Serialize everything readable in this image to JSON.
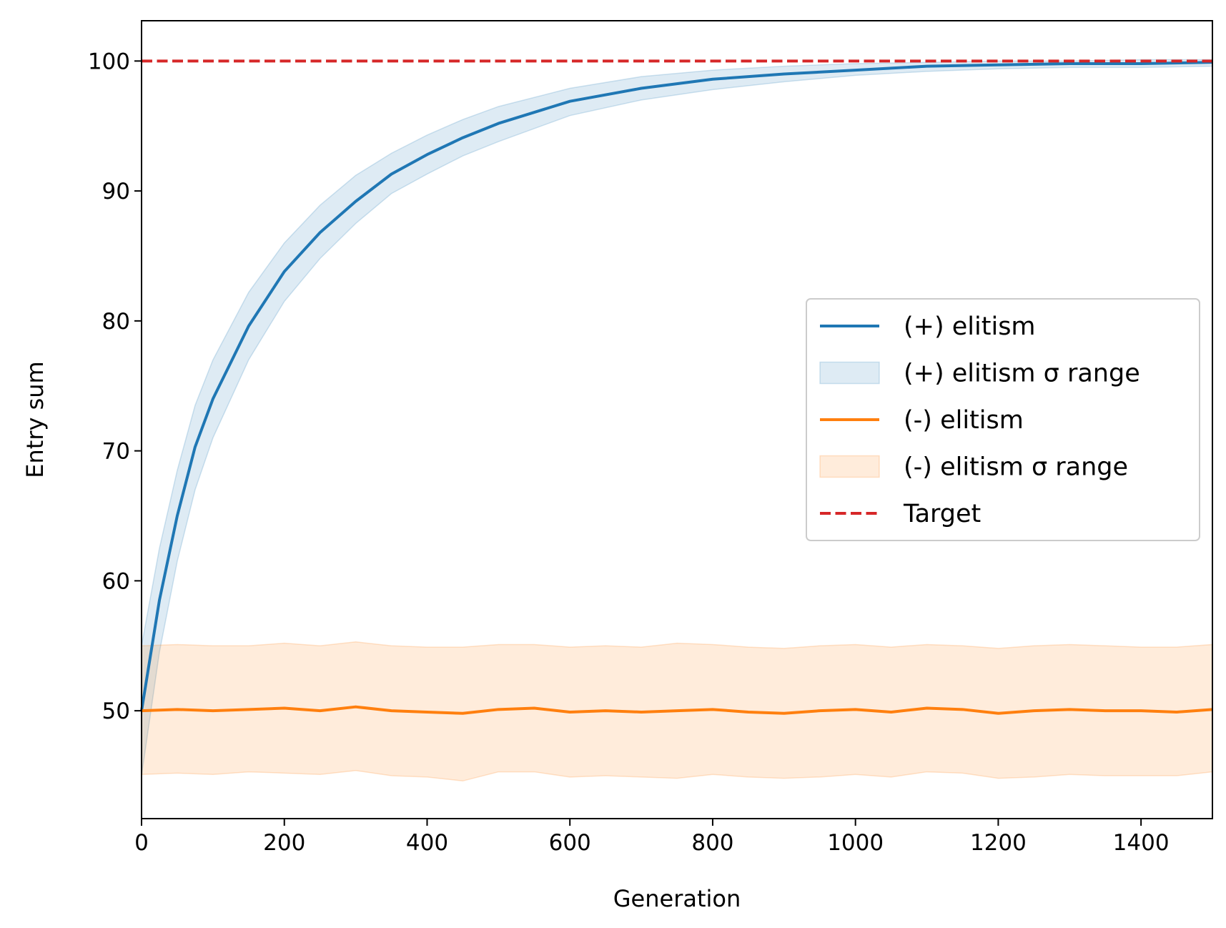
{
  "chart_data": {
    "type": "line",
    "xlabel": "Generation",
    "ylabel": "Entry sum",
    "xlim": [
      0,
      1500
    ],
    "ylim": [
      41.7,
      103.1
    ],
    "xticks": [
      0,
      200,
      400,
      600,
      800,
      1000,
      1200,
      1400
    ],
    "yticks": [
      50,
      60,
      70,
      80,
      90,
      100
    ],
    "grid": false,
    "legend_position": "center-right",
    "series": [
      {
        "name": "(+) elitism",
        "kind": "line",
        "color": "#1f77b4",
        "x": [
          0,
          25,
          50,
          75,
          100,
          150,
          200,
          250,
          300,
          350,
          400,
          450,
          500,
          600,
          700,
          800,
          900,
          1000,
          1100,
          1200,
          1300,
          1400,
          1500
        ],
        "y": [
          50.0,
          58.5,
          65.0,
          70.3,
          74.0,
          79.6,
          83.8,
          86.8,
          89.2,
          91.3,
          92.8,
          94.1,
          95.2,
          96.9,
          97.9,
          98.6,
          99.0,
          99.3,
          99.6,
          99.7,
          99.8,
          99.8,
          99.9
        ]
      },
      {
        "name": "(+) elitism σ range",
        "kind": "band",
        "color": "#1f77b4",
        "x": [
          0,
          25,
          50,
          75,
          100,
          150,
          200,
          250,
          300,
          350,
          400,
          450,
          500,
          600,
          700,
          800,
          900,
          1000,
          1100,
          1200,
          1300,
          1400,
          1500
        ],
        "lower": [
          45.0,
          54.5,
          61.5,
          67.0,
          71.0,
          77.0,
          81.5,
          84.8,
          87.5,
          89.8,
          91.3,
          92.7,
          93.8,
          95.8,
          97.0,
          97.8,
          98.4,
          98.9,
          99.2,
          99.4,
          99.5,
          99.5,
          99.6
        ],
        "upper": [
          55.0,
          62.5,
          68.5,
          73.5,
          77.0,
          82.2,
          86.0,
          88.9,
          91.2,
          92.9,
          94.3,
          95.5,
          96.5,
          97.9,
          98.8,
          99.3,
          99.6,
          99.8,
          99.9,
          100.0,
          100.0,
          100.1,
          100.1
        ]
      },
      {
        "name": "(-) elitism",
        "kind": "line",
        "color": "#ff7f0e",
        "x": [
          0,
          50,
          100,
          150,
          200,
          250,
          300,
          350,
          400,
          450,
          500,
          550,
          600,
          650,
          700,
          750,
          800,
          850,
          900,
          950,
          1000,
          1050,
          1100,
          1150,
          1200,
          1250,
          1300,
          1350,
          1400,
          1450,
          1500
        ],
        "y": [
          50.0,
          50.1,
          50.0,
          50.1,
          50.2,
          50.0,
          50.3,
          50.0,
          49.9,
          49.8,
          50.1,
          50.2,
          49.9,
          50.0,
          49.9,
          50.0,
          50.1,
          49.9,
          49.8,
          50.0,
          50.1,
          49.9,
          50.2,
          50.1,
          49.8,
          50.0,
          50.1,
          50.0,
          50.0,
          49.9,
          50.1
        ]
      },
      {
        "name": "(-) elitism σ range",
        "kind": "band",
        "color": "#ff7f0e",
        "x": [
          0,
          50,
          100,
          150,
          200,
          250,
          300,
          350,
          400,
          450,
          500,
          550,
          600,
          650,
          700,
          750,
          800,
          850,
          900,
          950,
          1000,
          1050,
          1100,
          1150,
          1200,
          1250,
          1300,
          1350,
          1400,
          1450,
          1500
        ],
        "lower": [
          45.1,
          45.2,
          45.1,
          45.3,
          45.2,
          45.1,
          45.4,
          45.0,
          44.9,
          44.6,
          45.3,
          45.3,
          44.9,
          45.0,
          44.9,
          44.8,
          45.1,
          44.9,
          44.8,
          44.9,
          45.1,
          44.9,
          45.3,
          45.2,
          44.8,
          44.9,
          45.1,
          45.0,
          45.0,
          45.0,
          45.3
        ],
        "upper": [
          55.0,
          55.1,
          55.0,
          55.0,
          55.2,
          55.0,
          55.3,
          55.0,
          54.9,
          54.9,
          55.1,
          55.1,
          54.9,
          55.0,
          54.9,
          55.2,
          55.1,
          54.9,
          54.8,
          55.0,
          55.1,
          54.9,
          55.1,
          55.0,
          54.8,
          55.0,
          55.1,
          55.0,
          54.9,
          54.9,
          55.1
        ]
      },
      {
        "name": "Target",
        "kind": "hline",
        "color": "#d62728",
        "y": 100
      }
    ]
  }
}
